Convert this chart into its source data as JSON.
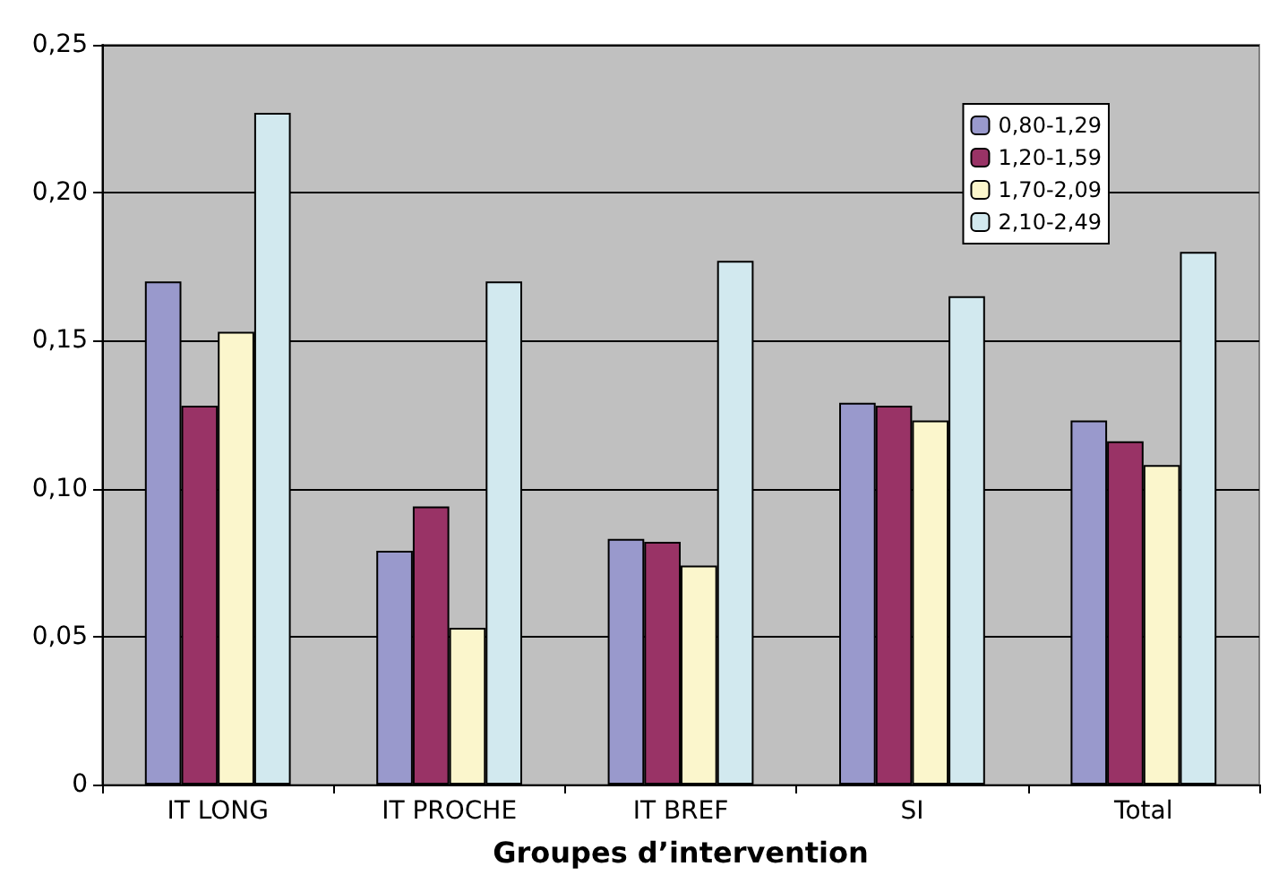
{
  "chart_data": {
    "type": "bar",
    "xlabel": "Groupes d’intervention",
    "categories": [
      "IT LONG",
      "IT PROCHE",
      "IT BREF",
      "SI",
      "Total"
    ],
    "series": [
      {
        "name": "0,80-1,29",
        "color": "#9999cc",
        "values": [
          0.17,
          0.079,
          0.083,
          0.129,
          0.123
        ]
      },
      {
        "name": "1,20-1,59",
        "color": "#993366",
        "values": [
          0.128,
          0.094,
          0.082,
          0.128,
          0.116
        ]
      },
      {
        "name": "1,70-2,09",
        "color": "#fbf6cc",
        "values": [
          0.153,
          0.053,
          0.074,
          0.123,
          0.108
        ]
      },
      {
        "name": "2,10-2,49",
        "color": "#d2e9ef",
        "values": [
          0.227,
          0.17,
          0.177,
          0.165,
          0.18
        ]
      }
    ],
    "ylim": [
      0,
      0.25
    ],
    "yticks": [
      {
        "value": 0,
        "label": "0"
      },
      {
        "value": 0.05,
        "label": "0,05"
      },
      {
        "value": 0.1,
        "label": "0,10"
      },
      {
        "value": 0.15,
        "label": "0,15"
      },
      {
        "value": 0.2,
        "label": "0,20"
      },
      {
        "value": 0.25,
        "label": "0,25"
      }
    ],
    "grid": "y",
    "legend": "top right"
  }
}
